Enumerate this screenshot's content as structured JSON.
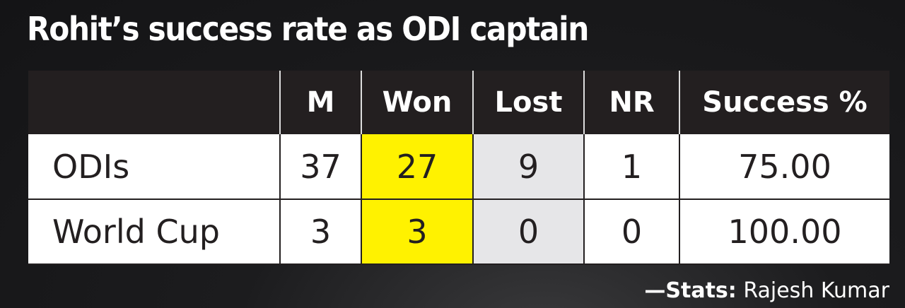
{
  "title": "Rohit’s success rate as ODI captain",
  "table": {
    "header": [
      "M",
      "Won",
      "Lost",
      "NR",
      "Success %"
    ],
    "rows": [
      [
        "ODIs",
        "37",
        "27",
        "9",
        "1",
        "75.00"
      ],
      [
        "World Cup",
        "3",
        "3",
        "0",
        "0",
        "100.00"
      ]
    ]
  },
  "credit": {
    "label": "—Stats:",
    "name": "Rajesh Kumar"
  }
}
